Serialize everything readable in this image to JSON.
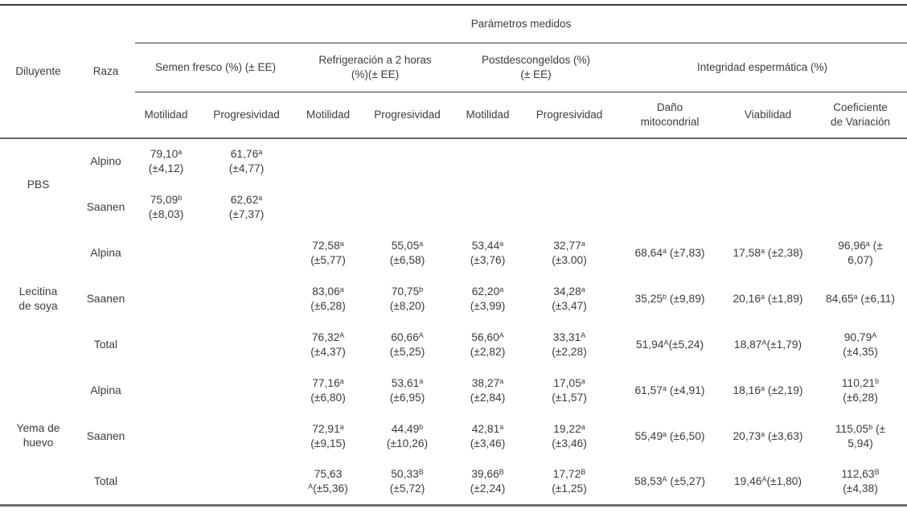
{
  "header": {
    "title": "Parámetros medidos",
    "diluyente": "Diluyente",
    "raza": "Raza",
    "groups": [
      {
        "label": "Semen fresco (%) (± EE)",
        "cols": [
          "Motilidad",
          "Progresividad"
        ]
      },
      {
        "label": "Refrigeración a 2 horas\n(%)(± EE)",
        "cols": [
          "Motilidad",
          "Progresividad"
        ]
      },
      {
        "label": "Postdescongeldos (%)\n(± EE)",
        "cols": [
          "Motilidad",
          "Progresividad"
        ]
      },
      {
        "label": "Integridad espermática (%)",
        "cols": [
          "Daño\nmitocondrial",
          "Viabilidad",
          "Coeficiente\nde Variación"
        ]
      }
    ]
  },
  "table": {
    "body": [
      {
        "group": {
          "label": "PBS",
          "span": 2
        },
        "raza": "Alpino",
        "cells": [
          [
            [
              "79,10",
              {
                "sup": "a"
              }
            ],
            [
              "(±4,12)"
            ]
          ],
          [
            [
              "61,76",
              {
                "sup": "a"
              }
            ],
            [
              "(±4,77)"
            ]
          ],
          null,
          null,
          null,
          null,
          null,
          null,
          null
        ]
      },
      {
        "raza": "Saanen",
        "cells": [
          [
            [
              "75,09",
              {
                "sup": "b"
              }
            ],
            [
              "(±8,03)"
            ]
          ],
          [
            [
              "62,62",
              {
                "sup": "a"
              }
            ],
            [
              "(±7,37)"
            ]
          ],
          null,
          null,
          null,
          null,
          null,
          null,
          null
        ]
      },
      {
        "group": {
          "label": "Lecitina\nde soya",
          "span": 3
        },
        "raza": "Alpina",
        "cells": [
          null,
          null,
          [
            [
              "72,58",
              {
                "sup": "a"
              }
            ],
            [
              "(±5,77)"
            ]
          ],
          [
            [
              "55,05",
              {
                "sup": "a"
              }
            ],
            [
              "(±6,58)"
            ]
          ],
          [
            [
              "53,44",
              {
                "sup": "a"
              }
            ],
            [
              "(±3,76)"
            ]
          ],
          [
            [
              "32,77",
              {
                "sup": "a"
              }
            ],
            [
              "(±3.00)"
            ]
          ],
          [
            [
              "68,64",
              {
                "sup": "a"
              },
              " (±7,83)"
            ]
          ],
          [
            [
              "17,58",
              {
                "sup": "a"
              },
              " (±2,38)"
            ]
          ],
          [
            [
              "96,96",
              {
                "sup": "a"
              },
              " (±"
            ],
            [
              "6,07)"
            ]
          ]
        ]
      },
      {
        "raza": "Saanen",
        "cells": [
          null,
          null,
          [
            [
              "83,06",
              {
                "sup": "a"
              }
            ],
            [
              "(±6,28)"
            ]
          ],
          [
            [
              "70,75",
              {
                "sup": "b"
              }
            ],
            [
              "(±8,20)"
            ]
          ],
          [
            [
              "62,20",
              {
                "sup": "a"
              }
            ],
            [
              "(±3,99)"
            ]
          ],
          [
            [
              "34,28",
              {
                "sup": "a"
              }
            ],
            [
              "(±3,47)"
            ]
          ],
          [
            [
              "35,25",
              {
                "sup": "b"
              },
              " (±9,89)"
            ]
          ],
          [
            [
              "20,16",
              {
                "sup": "a"
              },
              " (±1,89)"
            ]
          ],
          [
            [
              "84,65",
              {
                "sup": "a"
              },
              " (±6,11)"
            ]
          ]
        ]
      },
      {
        "raza": "Total",
        "cells": [
          null,
          null,
          [
            [
              "76,32",
              {
                "sup": "A"
              }
            ],
            [
              "(±4,37)"
            ]
          ],
          [
            [
              "60,66",
              {
                "sup": "A"
              }
            ],
            [
              "(±5,25)"
            ]
          ],
          [
            [
              "56,60",
              {
                "sup": "A"
              }
            ],
            [
              "(±2,82)"
            ]
          ],
          [
            [
              "33,31",
              {
                "sup": "A"
              }
            ],
            [
              "(±2,28)"
            ]
          ],
          [
            [
              "51,94",
              {
                "sup": "A"
              },
              "(±5,24)"
            ]
          ],
          [
            [
              "18,87",
              {
                "sup": "A"
              },
              "(±1,79)"
            ]
          ],
          [
            [
              "90,79",
              {
                "sup": "A"
              }
            ],
            [
              "(±4,35)"
            ]
          ]
        ]
      },
      {
        "group": {
          "label": "Yema de\nhuevo",
          "span": 3
        },
        "raza": "Alpina",
        "cells": [
          null,
          null,
          [
            [
              "77,16",
              {
                "sup": "a"
              }
            ],
            [
              "(±6,80)"
            ]
          ],
          [
            [
              "53,61",
              {
                "sup": "a"
              }
            ],
            [
              "(±6,95)"
            ]
          ],
          [
            [
              "38,27",
              {
                "sup": "a"
              }
            ],
            [
              "(±2,84)"
            ]
          ],
          [
            [
              "17,05",
              {
                "sup": "a"
              }
            ],
            [
              "(±1,57)"
            ]
          ],
          [
            [
              "61,57",
              {
                "sup": "a"
              },
              " (±4,91)"
            ]
          ],
          [
            [
              "18,16",
              {
                "sup": "a"
              },
              " (±2,19)"
            ]
          ],
          [
            [
              "110,21",
              {
                "sup": "b"
              }
            ],
            [
              "(±6,28)"
            ]
          ]
        ]
      },
      {
        "raza": "Saanen",
        "cells": [
          null,
          null,
          [
            [
              "72,91",
              {
                "sup": "a"
              }
            ],
            [
              "(±9,15)"
            ]
          ],
          [
            [
              "44,49",
              {
                "sup": "b"
              }
            ],
            [
              "(±10,26)"
            ]
          ],
          [
            [
              "42,81",
              {
                "sup": "a"
              }
            ],
            [
              "(±3,46)"
            ]
          ],
          [
            [
              "19,22",
              {
                "sup": "a"
              }
            ],
            [
              "(±3,46)"
            ]
          ],
          [
            [
              "55,49",
              {
                "sup": "a"
              },
              " (±6,50)"
            ]
          ],
          [
            [
              "20,73",
              {
                "sup": "a"
              },
              " (±3,63)"
            ]
          ],
          [
            [
              "115,05",
              {
                "sup": "b"
              },
              " (±"
            ],
            [
              "5,94)"
            ]
          ]
        ]
      },
      {
        "raza": "Total",
        "cells": [
          null,
          null,
          [
            [
              "75,63"
            ],
            [
              {
                "sup": "A"
              },
              "(±5,36)"
            ]
          ],
          [
            [
              "50,33",
              {
                "sup": "B"
              }
            ],
            [
              "(±5,72)"
            ]
          ],
          [
            [
              "39,66",
              {
                "sup": "B"
              }
            ],
            [
              "(±2,24)"
            ]
          ],
          [
            [
              "17,72",
              {
                "sup": "B"
              }
            ],
            [
              "(±1,25)"
            ]
          ],
          [
            [
              "58,53",
              {
                "sup": "A"
              },
              " (±5,27)"
            ]
          ],
          [
            [
              "19,46",
              {
                "sup": "A"
              },
              "(±1,80)"
            ]
          ],
          [
            [
              "112,63",
              {
                "sup": "B"
              }
            ],
            [
              "(±4,38)"
            ]
          ]
        ]
      }
    ]
  }
}
